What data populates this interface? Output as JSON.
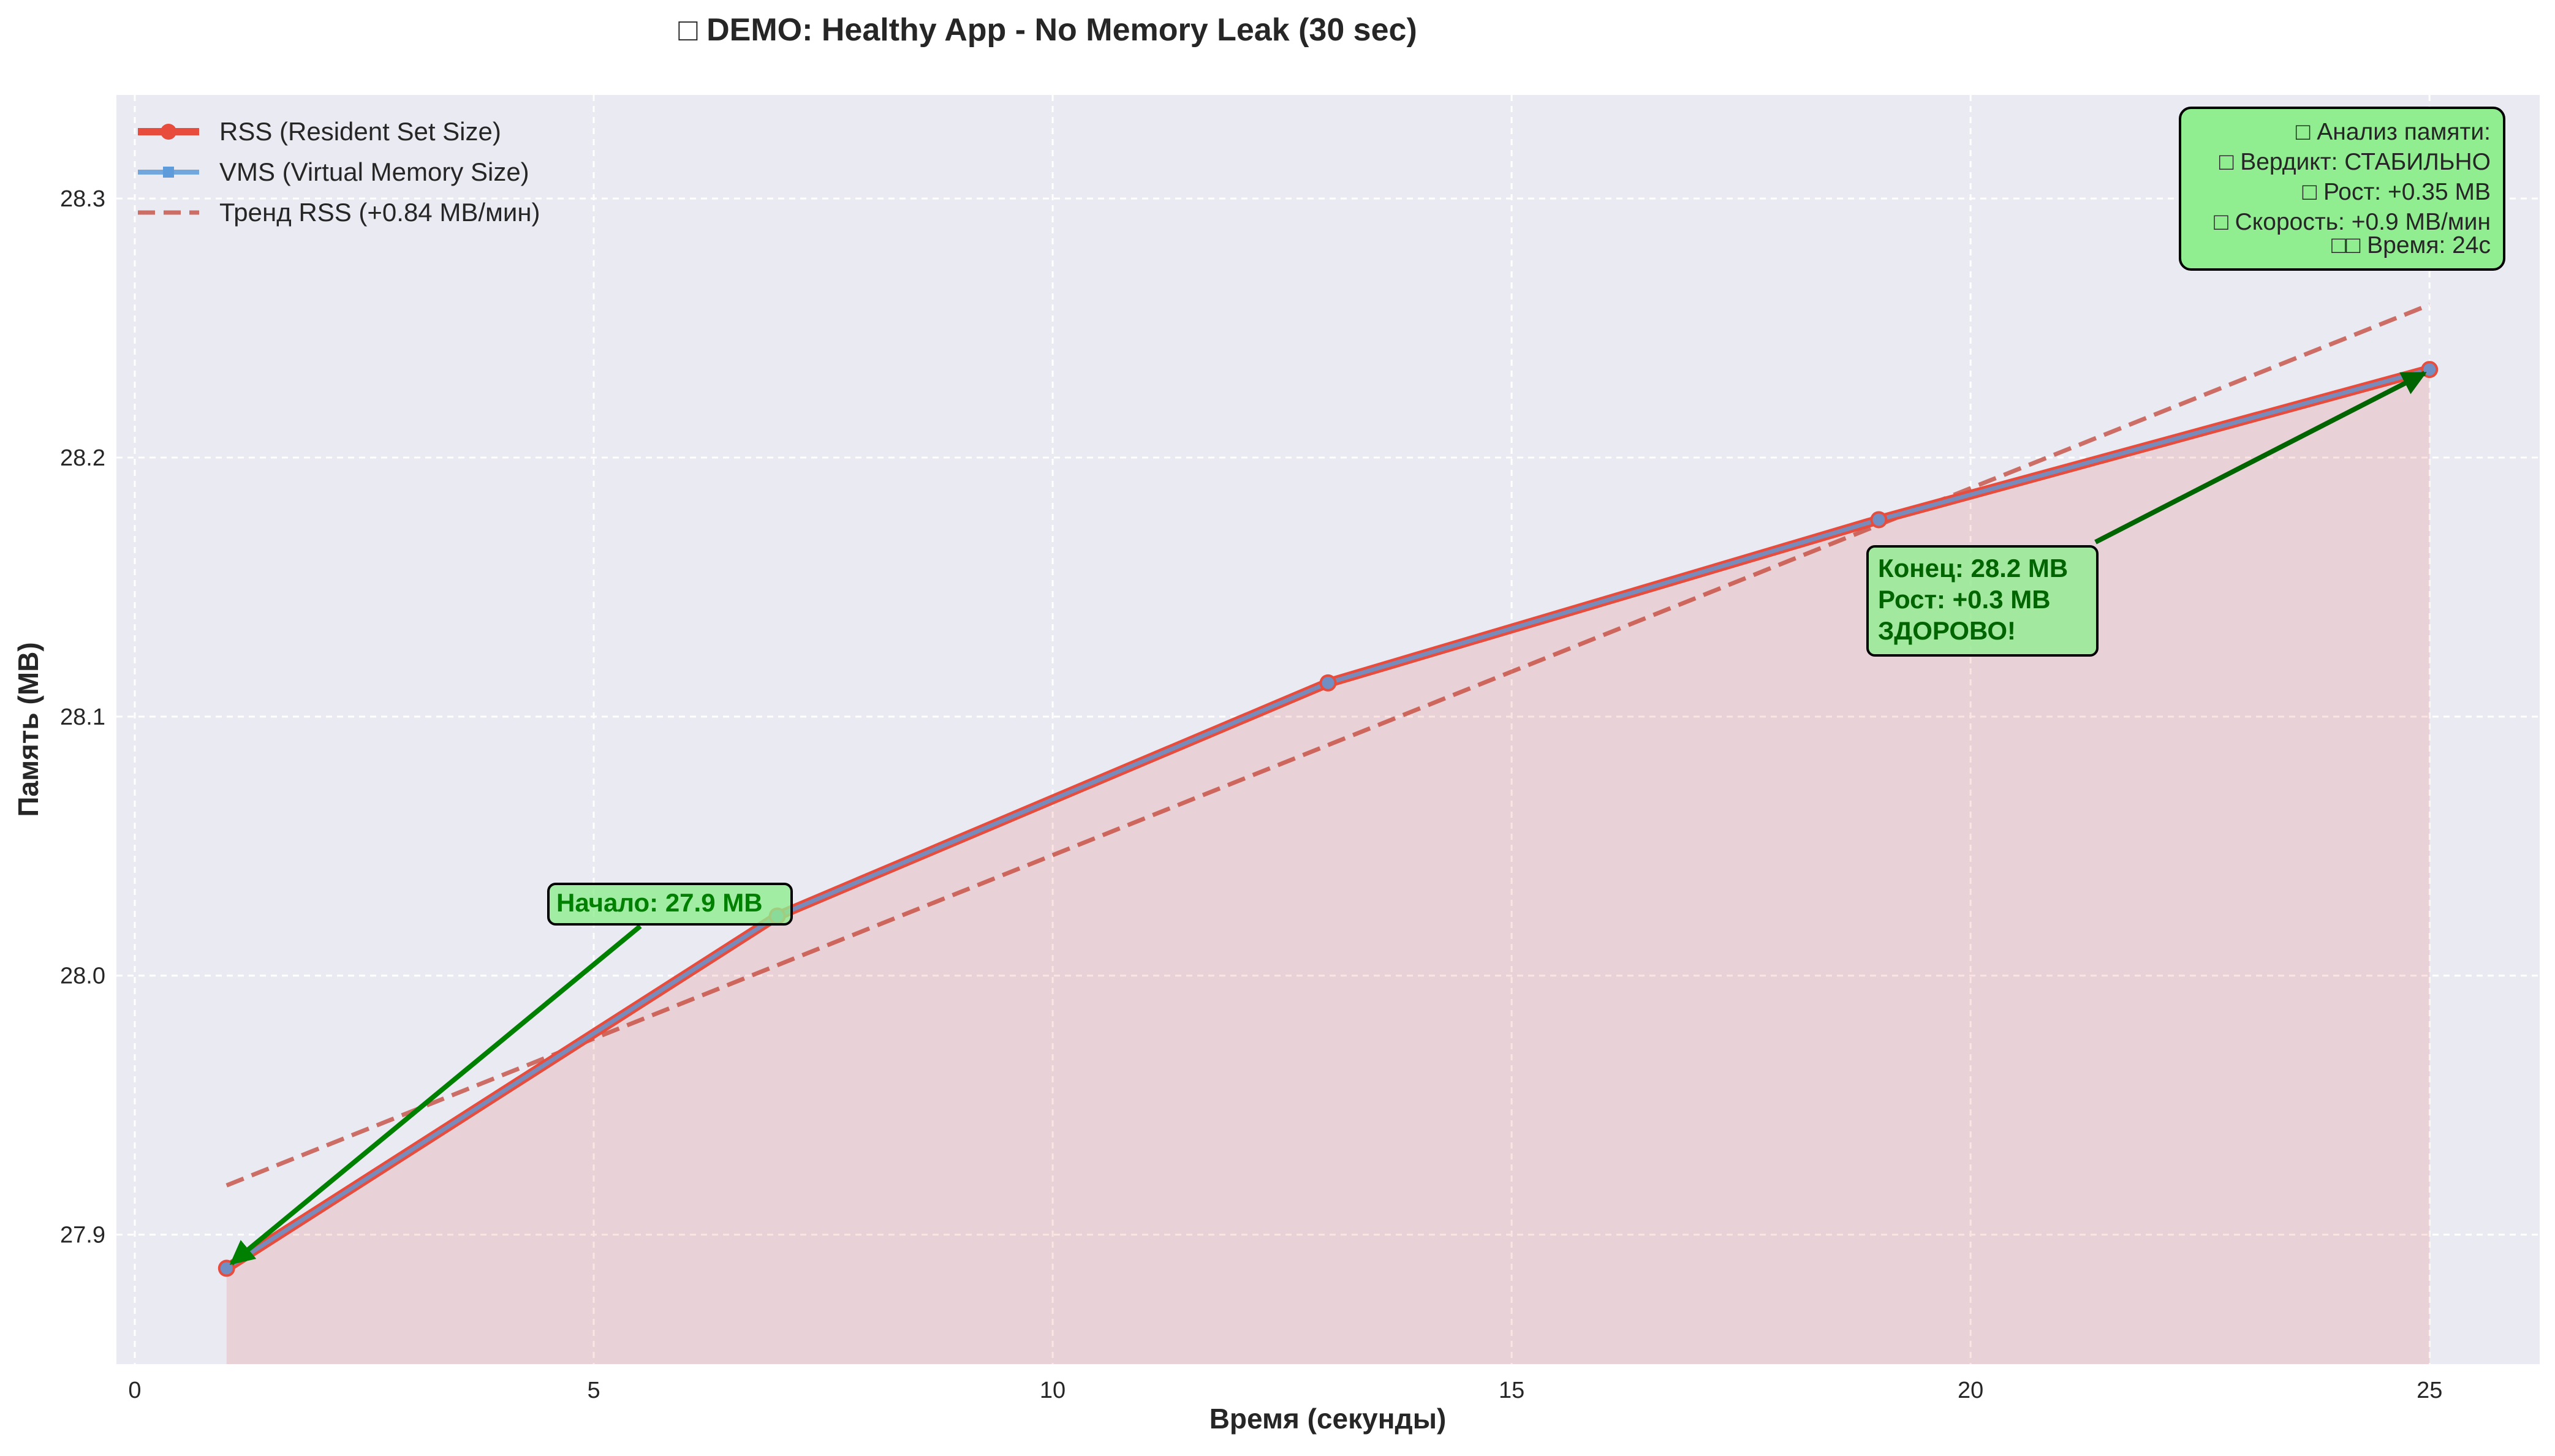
{
  "chart_data": {
    "type": "line",
    "title": "□ DEMO: Healthy App - No Memory Leak (30 sec)",
    "xlabel": "Время (секунды)",
    "ylabel": "Память (MB)",
    "xlim": [
      -0.2,
      26.2
    ],
    "ylim": [
      27.85,
      28.34
    ],
    "x_ticks": [
      0,
      5,
      10,
      15,
      20,
      25
    ],
    "x_tick_labels": [
      "0",
      "5",
      "10",
      "15",
      "20",
      "25"
    ],
    "y_ticks": [
      27.9,
      28.0,
      28.1,
      28.2,
      28.3
    ],
    "y_tick_labels": [
      "27.9",
      "28.0",
      "28.1",
      "28.2",
      "28.3"
    ],
    "grid": true,
    "legend_position": "top-left",
    "x": [
      1,
      7,
      13,
      19,
      25
    ],
    "series": [
      {
        "name": "RSS (Resident Set Size)",
        "values": [
          27.887,
          28.023,
          28.113,
          28.176,
          28.234
        ],
        "color": "#e74c3c",
        "fill": true
      },
      {
        "name": "VMS (Virtual Memory Size)",
        "values": [
          27.887,
          28.023,
          28.113,
          28.176,
          28.234
        ],
        "color": "#5d9bdb"
      },
      {
        "name": "Тренд RSS (+0.84 MB/мин)",
        "trend": [
          27.919,
          28.259
        ],
        "color": "#c0392b",
        "dashed": true
      }
    ],
    "annotations": {
      "start": {
        "lines": [
          "Начало: 27.9 MB"
        ],
        "x": 1,
        "y": 27.887
      },
      "end": {
        "lines": [
          "Конец: 28.2 MB",
          "Рост: +0.3 MB",
          "ЗДОРОВО!"
        ],
        "x": 25,
        "y": 28.234
      }
    },
    "analysis_box": {
      "lines": [
        "□ Анализ памяти:",
        "□ Вердикт: СТАБИЛЬНО",
        "□ Рост: +0.35 MB",
        "□ Скорость: +0.9 MB/мин",
        "□□ Время: 24с"
      ]
    },
    "colors": {
      "plot_bg": "#eaeaf2",
      "grid": "#ffffff",
      "annotation_fill": "#90ee90",
      "annotation_text": "#006400",
      "start_text": "#008000",
      "arrow_start": "#008000",
      "arrow_end": "#006400"
    }
  }
}
